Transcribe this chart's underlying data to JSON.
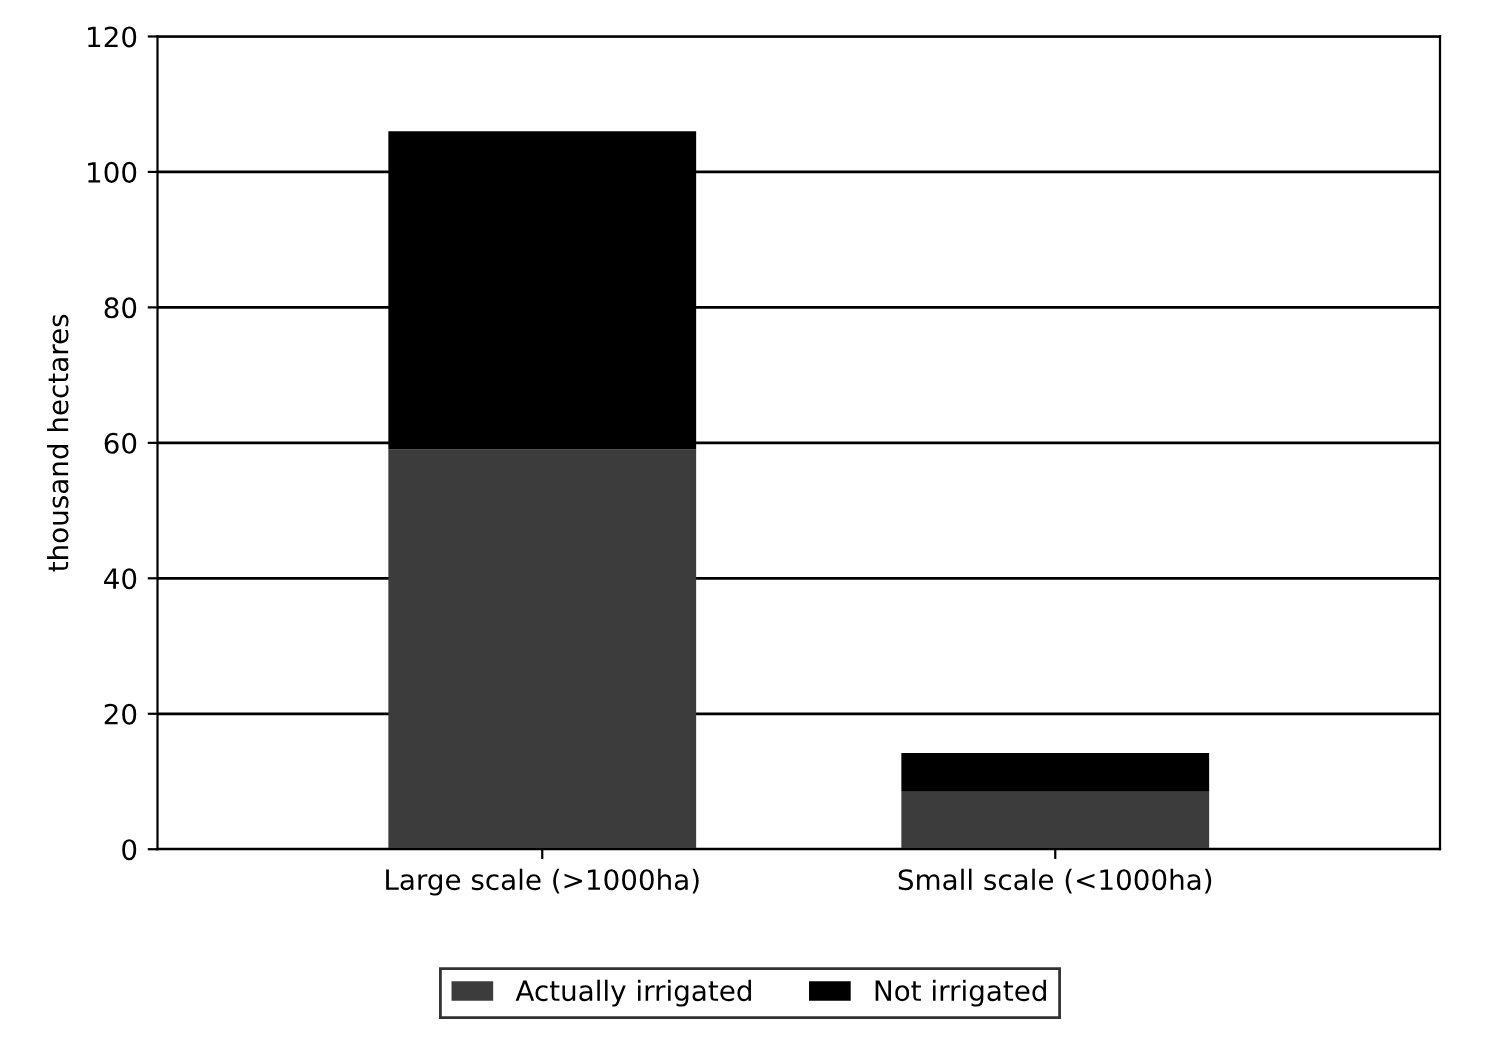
{
  "chart_data": {
    "type": "bar",
    "stacked": true,
    "ylabel": "thousand hectares",
    "categories": [
      "Large scale (>1000ha)",
      "Small scale (<1000ha)"
    ],
    "series": [
      {
        "name": "Actually irrigated",
        "color": "#3c3c3c",
        "values": [
          59,
          8.5
        ]
      },
      {
        "name": "Not irrigated",
        "color": "#000000",
        "values": [
          47,
          5.7
        ]
      }
    ],
    "ylim": [
      0,
      120
    ],
    "yticks": [
      0,
      20,
      40,
      60,
      80,
      100,
      120
    ],
    "grid": "y",
    "legend": "bottom"
  }
}
